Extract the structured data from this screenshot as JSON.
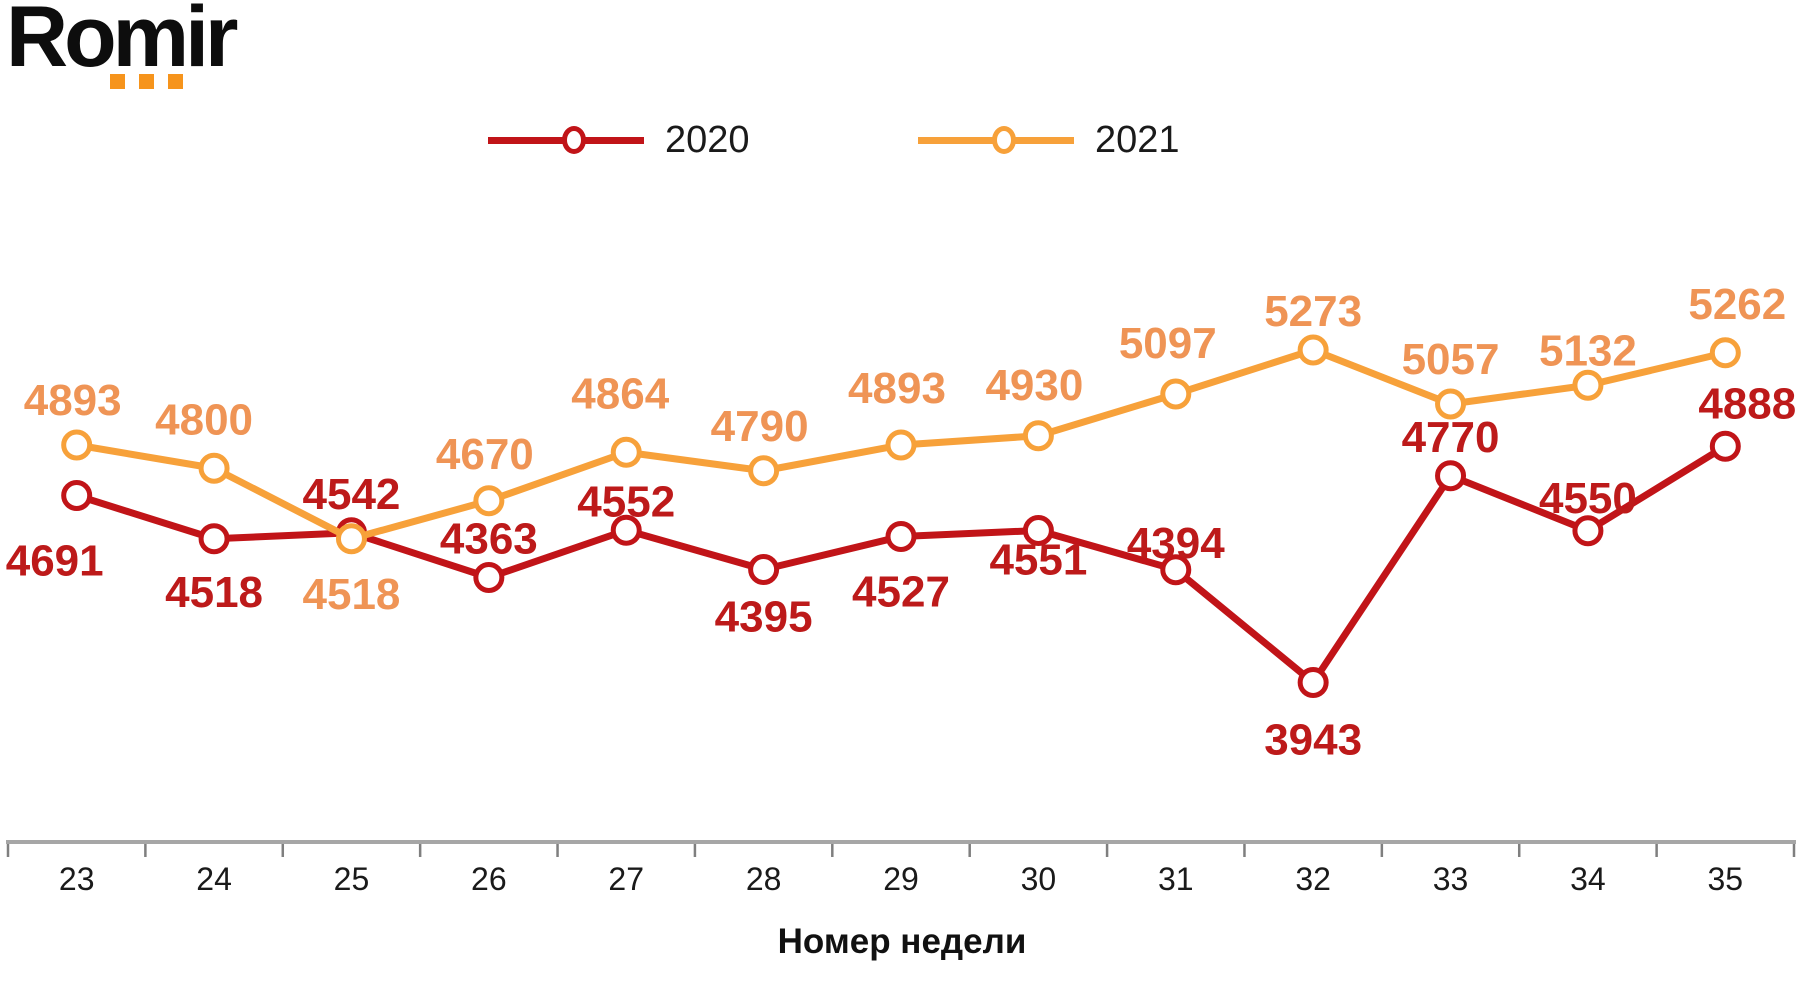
{
  "logo": {
    "text": "Romir",
    "text_color": "#0D0D0D",
    "dots_color": "#F6941C"
  },
  "legend": {
    "items": [
      {
        "label": "2020",
        "color": "#C11418"
      },
      {
        "label": "2021",
        "color": "#F7A13A"
      }
    ]
  },
  "chart_data": {
    "type": "line",
    "title": "",
    "xlabel": "Номер недели",
    "ylabel": "",
    "x": [
      23,
      24,
      25,
      26,
      27,
      28,
      29,
      30,
      31,
      32,
      33,
      34,
      35
    ],
    "series": [
      {
        "name": "2020",
        "color": "#C11418",
        "label_color": "#BD1A1A",
        "values": [
          4691,
          4518,
          4542,
          4363,
          4552,
          4395,
          4527,
          4551,
          4394,
          3943,
          4770,
          4550,
          4888
        ],
        "label_offsets": [
          [
            -22,
            80
          ],
          [
            0,
            68
          ],
          [
            0,
            -24
          ],
          [
            0,
            -24
          ],
          [
            0,
            -14
          ],
          [
            0,
            62
          ],
          [
            0,
            70
          ],
          [
            0,
            44
          ],
          [
            0,
            -12
          ],
          [
            0,
            72
          ],
          [
            0,
            -24
          ],
          [
            0,
            -18
          ],
          [
            22,
            -28
          ]
        ]
      },
      {
        "name": "2021",
        "color": "#F7A13A",
        "label_color": "#EF9455",
        "values": [
          4893,
          4800,
          4518,
          4670,
          4864,
          4790,
          4893,
          4930,
          5097,
          5273,
          5057,
          5132,
          5262
        ],
        "label_offsets": [
          [
            -4,
            -30
          ],
          [
            -10,
            -34
          ],
          [
            0,
            70
          ],
          [
            -4,
            -32
          ],
          [
            -6,
            -44
          ],
          [
            -4,
            -30
          ],
          [
            -4,
            -42
          ],
          [
            -4,
            -36
          ],
          [
            -8,
            -36
          ],
          [
            0,
            -24
          ],
          [
            0,
            -30
          ],
          [
            0,
            -20
          ],
          [
            12,
            -34
          ]
        ]
      }
    ],
    "ylim": [
      3293,
      6153
    ],
    "grid": false,
    "legend_position": "top-center",
    "marker_fill": "#FFFFFF",
    "axis": {
      "line_color": "#A6A6A6",
      "tick_color": "#7F7F7F",
      "label_color": "#1A1A1A"
    }
  }
}
